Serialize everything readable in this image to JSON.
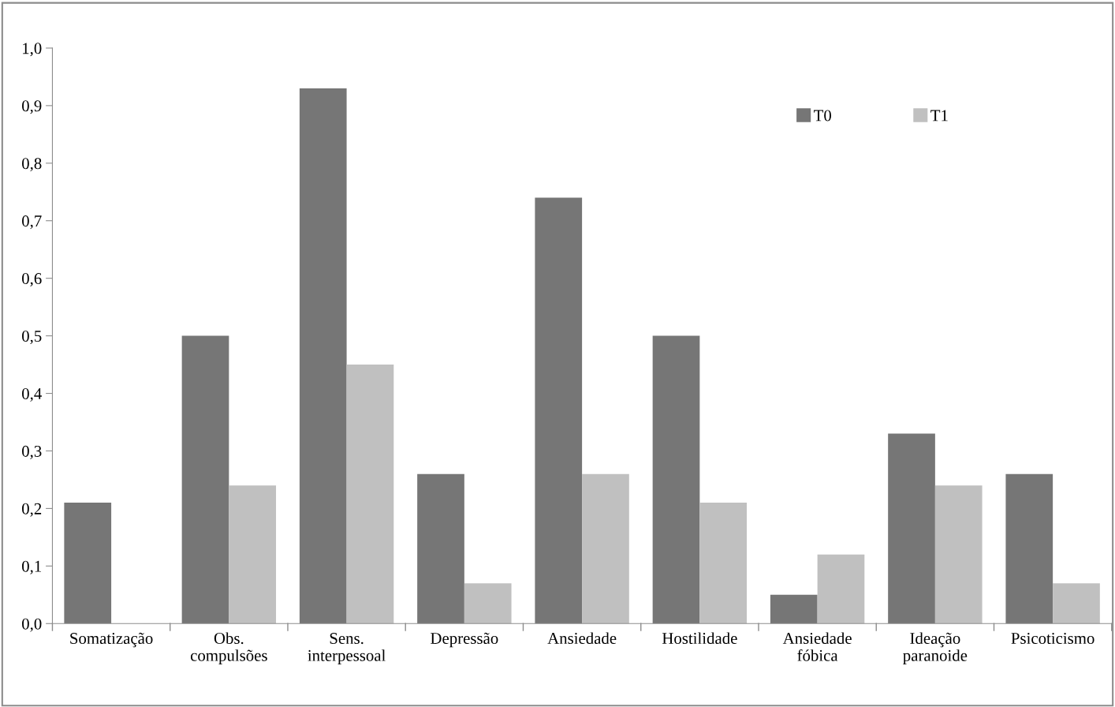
{
  "chart_data": {
    "type": "bar",
    "categories": [
      "Somatização",
      "Obs.\ncompulsões",
      "Sens.\ninterpessoal",
      "Depressão",
      "Ansiedade",
      "Hostilidade",
      "Ansiedade\nfóbica",
      "Ideação\nparanoide",
      "Psicoticismo"
    ],
    "series": [
      {
        "name": "T0",
        "color": "#767676",
        "values": [
          0.21,
          0.5,
          0.93,
          0.26,
          0.74,
          0.5,
          0.05,
          0.33,
          0.26
        ]
      },
      {
        "name": "T1",
        "color": "#c0c0c0",
        "values": [
          null,
          0.24,
          0.45,
          0.07,
          0.26,
          0.21,
          0.12,
          0.24,
          0.07
        ]
      }
    ],
    "ylim": [
      0,
      1.0
    ],
    "yticks": [
      {
        "value": 0,
        "label": "0,0"
      },
      {
        "value": 0.1,
        "label": "0,1"
      },
      {
        "value": 0.2,
        "label": "0,2"
      },
      {
        "value": 0.3,
        "label": "0,3"
      },
      {
        "value": 0.4,
        "label": "0,4"
      },
      {
        "value": 0.5,
        "label": "0,5"
      },
      {
        "value": 0.6,
        "label": "0,6"
      },
      {
        "value": 0.7,
        "label": "0,7"
      },
      {
        "value": 0.8,
        "label": "0,8"
      },
      {
        "value": 0.9,
        "label": "0,9"
      },
      {
        "value": 1.0,
        "label": "1,0"
      }
    ],
    "grid": false,
    "legend": "top right"
  }
}
